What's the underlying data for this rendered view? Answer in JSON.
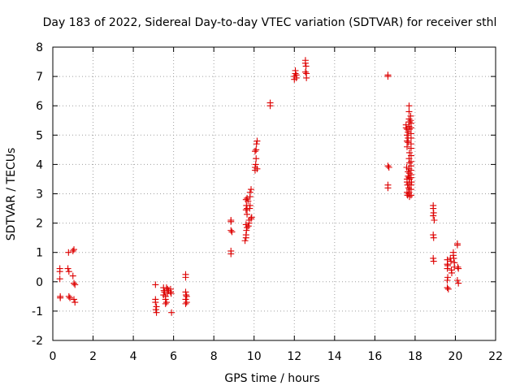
{
  "chart_data": {
    "type": "scatter",
    "title": "Day 183 of 2022, Sidereal Day-to-day VTEC variation (SDTVAR) for receiver sthl",
    "xlabel": "GPS time / hours",
    "ylabel": "SDTVAR / TECUs",
    "xlim": [
      0,
      22
    ],
    "ylim": [
      -2,
      8
    ],
    "xticks": [
      "0",
      "2",
      "4",
      "6",
      "8",
      "10",
      "12",
      "14",
      "16",
      "18",
      "20",
      "22"
    ],
    "yticks": [
      "-2",
      "-1",
      "0",
      "1",
      "2",
      "3",
      "4",
      "5",
      "6",
      "7",
      "8"
    ],
    "grid": true,
    "marker": "+",
    "color": "#dd0000",
    "series": [
      {
        "name": "SDTVAR",
        "points": [
          [
            0.35,
            0.45
          ],
          [
            0.35,
            0.35
          ],
          [
            0.35,
            0.1
          ],
          [
            0.37,
            -0.5
          ],
          [
            0.37,
            -0.55
          ],
          [
            0.75,
            0.45
          ],
          [
            0.8,
            0.35
          ],
          [
            0.78,
            1.0
          ],
          [
            0.8,
            -0.5
          ],
          [
            0.85,
            -0.55
          ],
          [
            1.0,
            1.05
          ],
          [
            1.05,
            1.1
          ],
          [
            1.0,
            0.2
          ],
          [
            1.05,
            -0.05
          ],
          [
            1.1,
            -0.1
          ],
          [
            1.05,
            -0.6
          ],
          [
            1.1,
            -0.7
          ],
          [
            5.1,
            -0.1
          ],
          [
            5.1,
            -0.6
          ],
          [
            5.1,
            -0.7
          ],
          [
            5.15,
            -0.85
          ],
          [
            5.12,
            -0.95
          ],
          [
            5.15,
            -1.05
          ],
          [
            5.5,
            -0.2
          ],
          [
            5.52,
            -0.3
          ],
          [
            5.55,
            -0.35
          ],
          [
            5.5,
            -0.45
          ],
          [
            5.6,
            -0.5
          ],
          [
            5.6,
            -0.6
          ],
          [
            5.65,
            -0.7
          ],
          [
            5.6,
            -0.75
          ],
          [
            5.65,
            -0.2
          ],
          [
            5.7,
            -0.25
          ],
          [
            5.7,
            -0.4
          ],
          [
            5.75,
            -0.3
          ],
          [
            5.85,
            -0.25
          ],
          [
            5.85,
            -0.35
          ],
          [
            5.88,
            -0.4
          ],
          [
            5.9,
            -1.05
          ],
          [
            6.6,
            0.25
          ],
          [
            6.6,
            0.15
          ],
          [
            6.6,
            -0.35
          ],
          [
            6.62,
            -0.45
          ],
          [
            6.65,
            -0.5
          ],
          [
            6.6,
            -0.6
          ],
          [
            6.65,
            -0.7
          ],
          [
            6.6,
            -0.75
          ],
          [
            8.85,
            2.1
          ],
          [
            8.85,
            2.05
          ],
          [
            8.85,
            1.75
          ],
          [
            8.9,
            1.7
          ],
          [
            8.85,
            1.05
          ],
          [
            8.85,
            0.95
          ],
          [
            9.55,
            1.4
          ],
          [
            9.6,
            1.5
          ],
          [
            9.6,
            1.6
          ],
          [
            9.62,
            1.75
          ],
          [
            9.65,
            1.85
          ],
          [
            9.6,
            1.95
          ],
          [
            9.65,
            2.3
          ],
          [
            9.6,
            2.45
          ],
          [
            9.65,
            2.5
          ],
          [
            9.62,
            2.6
          ],
          [
            9.6,
            2.8
          ],
          [
            9.65,
            2.85
          ],
          [
            9.7,
            2.75
          ],
          [
            9.72,
            1.9
          ],
          [
            9.75,
            2.0
          ],
          [
            9.75,
            2.1
          ],
          [
            9.78,
            2.5
          ],
          [
            9.8,
            2.6
          ],
          [
            9.8,
            2.9
          ],
          [
            9.8,
            3.05
          ],
          [
            9.85,
            3.15
          ],
          [
            9.85,
            2.15
          ],
          [
            9.88,
            2.2
          ],
          [
            10.05,
            3.8
          ],
          [
            10.05,
            3.9
          ],
          [
            10.08,
            4.0
          ],
          [
            10.1,
            4.2
          ],
          [
            10.05,
            4.45
          ],
          [
            10.1,
            4.5
          ],
          [
            10.12,
            4.7
          ],
          [
            10.15,
            4.8
          ],
          [
            10.15,
            3.85
          ],
          [
            10.8,
            6.0
          ],
          [
            10.8,
            6.1
          ],
          [
            12.0,
            6.9
          ],
          [
            12.0,
            7.0
          ],
          [
            12.05,
            7.1
          ],
          [
            12.05,
            7.2
          ],
          [
            12.1,
            6.95
          ],
          [
            12.1,
            7.05
          ],
          [
            12.55,
            7.55
          ],
          [
            12.55,
            7.45
          ],
          [
            12.58,
            7.35
          ],
          [
            12.55,
            7.15
          ],
          [
            12.6,
            7.1
          ],
          [
            12.6,
            6.95
          ],
          [
            16.65,
            7.05
          ],
          [
            16.65,
            7.0
          ],
          [
            16.65,
            3.95
          ],
          [
            16.7,
            3.9
          ],
          [
            16.65,
            3.3
          ],
          [
            16.65,
            3.2
          ],
          [
            17.55,
            5.35
          ],
          [
            17.55,
            5.25
          ],
          [
            17.6,
            5.2
          ],
          [
            17.6,
            5.0
          ],
          [
            17.6,
            4.8
          ],
          [
            17.6,
            4.6
          ],
          [
            17.58,
            3.9
          ],
          [
            17.6,
            3.5
          ],
          [
            17.6,
            3.4
          ],
          [
            17.62,
            3.3
          ],
          [
            17.6,
            3.05
          ],
          [
            17.62,
            2.95
          ],
          [
            17.65,
            5.1
          ],
          [
            17.65,
            4.9
          ],
          [
            17.65,
            4.75
          ],
          [
            17.65,
            3.75
          ],
          [
            17.65,
            3.6
          ],
          [
            17.68,
            3.2
          ],
          [
            17.68,
            3.0
          ],
          [
            17.7,
            6.0
          ],
          [
            17.7,
            5.8
          ],
          [
            17.7,
            5.55
          ],
          [
            17.72,
            5.45
          ],
          [
            17.7,
            5.3
          ],
          [
            17.72,
            5.2
          ],
          [
            17.72,
            4.4
          ],
          [
            17.7,
            4.2
          ],
          [
            17.72,
            4.05
          ],
          [
            17.7,
            3.85
          ],
          [
            17.72,
            3.7
          ],
          [
            17.7,
            3.55
          ],
          [
            17.72,
            3.5
          ],
          [
            17.7,
            3.35
          ],
          [
            17.72,
            3.15
          ],
          [
            17.7,
            3.05
          ],
          [
            17.72,
            2.9
          ],
          [
            17.78,
            5.65
          ],
          [
            17.78,
            5.5
          ],
          [
            17.8,
            5.4
          ],
          [
            17.8,
            5.25
          ],
          [
            17.8,
            5.05
          ],
          [
            17.8,
            4.9
          ],
          [
            17.8,
            4.7
          ],
          [
            17.8,
            4.55
          ],
          [
            17.8,
            4.3
          ],
          [
            17.8,
            4.1
          ],
          [
            17.8,
            3.95
          ],
          [
            17.8,
            3.8
          ],
          [
            17.8,
            3.65
          ],
          [
            17.8,
            3.55
          ],
          [
            17.82,
            3.4
          ],
          [
            17.8,
            3.3
          ],
          [
            17.8,
            3.15
          ],
          [
            17.8,
            2.95
          ],
          [
            18.9,
            2.5
          ],
          [
            18.9,
            2.6
          ],
          [
            18.92,
            2.35
          ],
          [
            18.9,
            2.25
          ],
          [
            18.95,
            2.1
          ],
          [
            18.9,
            1.6
          ],
          [
            18.92,
            1.5
          ],
          [
            18.9,
            0.8
          ],
          [
            18.92,
            0.7
          ],
          [
            19.6,
            0.75
          ],
          [
            19.6,
            0.6
          ],
          [
            19.62,
            0.55
          ],
          [
            19.6,
            0.45
          ],
          [
            19.62,
            0.15
          ],
          [
            19.6,
            0.05
          ],
          [
            19.6,
            -0.2
          ],
          [
            19.65,
            -0.25
          ],
          [
            19.75,
            0.8
          ],
          [
            19.78,
            0.7
          ],
          [
            19.8,
            0.4
          ],
          [
            19.82,
            0.3
          ],
          [
            19.9,
            1.0
          ],
          [
            19.9,
            0.9
          ],
          [
            19.92,
            0.8
          ],
          [
            19.95,
            0.65
          ],
          [
            19.95,
            0.5
          ],
          [
            20.1,
            1.3
          ],
          [
            20.1,
            1.25
          ],
          [
            20.12,
            0.5
          ],
          [
            20.15,
            0.45
          ],
          [
            20.1,
            0.05
          ],
          [
            20.15,
            -0.05
          ]
        ]
      }
    ]
  }
}
